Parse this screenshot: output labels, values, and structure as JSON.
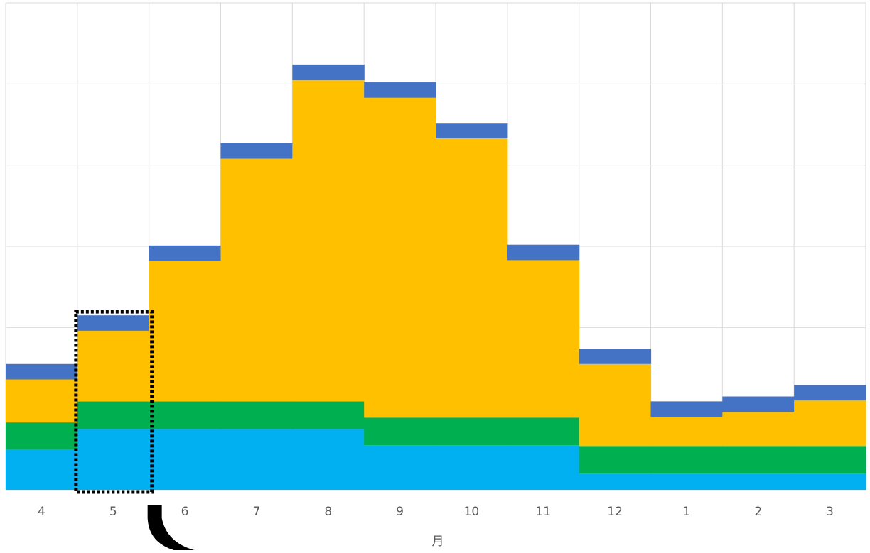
{
  "chart_data": {
    "type": "bar",
    "stacked": true,
    "categories": [
      "4",
      "5",
      "6",
      "7",
      "8",
      "9",
      "10",
      "11",
      "12",
      "1",
      "2",
      "3"
    ],
    "xlabel": "月",
    "ylabel": "",
    "title": "",
    "ylim": [
      0,
      600
    ],
    "grid": true,
    "legend": "none",
    "series": [
      {
        "color": "#00B0F0",
        "values": [
          50,
          75,
          75,
          75,
          75,
          55,
          55,
          55,
          20,
          20,
          20,
          20
        ]
      },
      {
        "color": "#00B050",
        "values": [
          33,
          34,
          34,
          34,
          34,
          34,
          34,
          34,
          34,
          34,
          34,
          34
        ]
      },
      {
        "color": "#FFC000",
        "values": [
          53,
          87,
          173,
          299,
          396,
          394,
          344,
          194,
          101,
          36,
          42,
          56
        ]
      },
      {
        "color": "#4472C4",
        "values": [
          19,
          19,
          19,
          19,
          19,
          19,
          19,
          19,
          19,
          19,
          19,
          19
        ]
      }
    ],
    "annotations": [
      {
        "type": "highlight-box",
        "category": "5",
        "style": "dotted-black"
      },
      {
        "type": "curved-arrow",
        "from_category": "5",
        "color": "#000000"
      }
    ]
  }
}
